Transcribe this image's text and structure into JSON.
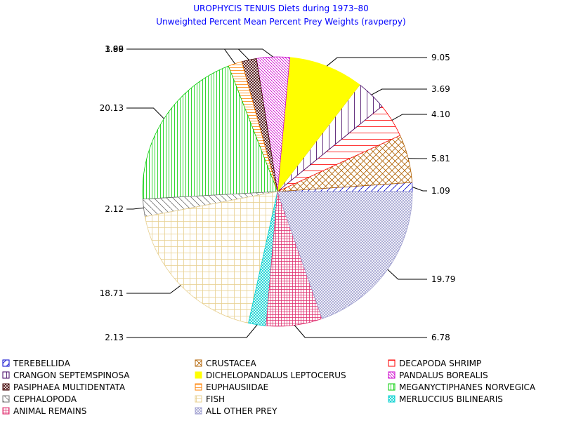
{
  "chart_data": {
    "type": "pie",
    "title": "UROPHYCIS TENUIS Diets during 1973–80",
    "subtitle": "Unweighted Percent Mean Percent Prey  Weights (ravperpy)",
    "slices": [
      {
        "name": "TEREBELLIDA",
        "value": 1.09,
        "label": "1.09",
        "color": "#0000cc",
        "pattern": "diag-up"
      },
      {
        "name": "CRUSTACEA",
        "value": 5.81,
        "label": "5.81",
        "color": "#b06000",
        "pattern": "cross-diag"
      },
      {
        "name": "DECAPODA SHRIMP",
        "value": 4.1,
        "label": "4.10",
        "color": "#ff0000",
        "pattern": "horiz"
      },
      {
        "name": "CRANGON SEPTEMSPINOSA",
        "value": 3.69,
        "label": "3.69",
        "color": "#400060",
        "pattern": "vert"
      },
      {
        "name": "DICHELOPANDALUS LEPTOCERUS",
        "value": 9.05,
        "label": "9.05",
        "color": "#ffff00",
        "pattern": "solid"
      },
      {
        "name": "PANDALUS BOREALIS",
        "value": 3.99,
        "label": "3.99",
        "color": "#cc00cc",
        "pattern": "diag-down-dense"
      },
      {
        "name": "PASIPHAEA MULTIDENTATA",
        "value": 1.8,
        "label": "1.80",
        "color": "#400000",
        "pattern": "cross-diag-dense"
      },
      {
        "name": "EUPHAUSIIDAE",
        "value": 1.66,
        "label": "1.66",
        "color": "#ff8000",
        "pattern": "horiz-dense"
      },
      {
        "name": "MEGANYCTIPHANES NORVEGICA",
        "value": 20.13,
        "label": "20.13",
        "color": "#00cc00",
        "pattern": "vert-dense"
      },
      {
        "name": "CEPHALOPODA",
        "value": 2.12,
        "label": "2.12",
        "color": "#707070",
        "pattern": "diag-down"
      },
      {
        "name": "FISH",
        "value": 18.71,
        "label": "18.71",
        "color": "#e8d090",
        "pattern": "grid"
      },
      {
        "name": "MERLUCCIUS BILINEARIS",
        "value": 2.13,
        "label": "2.13",
        "color": "#00d0d0",
        "pattern": "cross-diag-dense"
      },
      {
        "name": "ANIMAL REMAINS",
        "value": 6.78,
        "label": "6.78",
        "color": "#e03070",
        "pattern": "grid-dense"
      },
      {
        "name": "ALL OTHER PREY",
        "value": 19.79,
        "label": "19.79",
        "color": "#a0a0d0",
        "pattern": "cross-diag-dense"
      }
    ],
    "legend": [
      [
        "TEREBELLIDA",
        "CRUSTACEA",
        "DECAPODA SHRIMP"
      ],
      [
        "CRANGON SEPTEMSPINOSA",
        "DICHELOPANDALUS LEPTOCERUS",
        "PANDALUS BOREALIS"
      ],
      [
        "PASIPHAEA MULTIDENTATA",
        "EUPHAUSIIDAE",
        "MEGANYCTIPHANES NORVEGICA"
      ],
      [
        "CEPHALOPODA",
        "FISH",
        "MERLUCCIUS BILINEARIS"
      ],
      [
        "ANIMAL REMAINS",
        "ALL OTHER PREY"
      ]
    ],
    "legend_position": "bottom"
  }
}
